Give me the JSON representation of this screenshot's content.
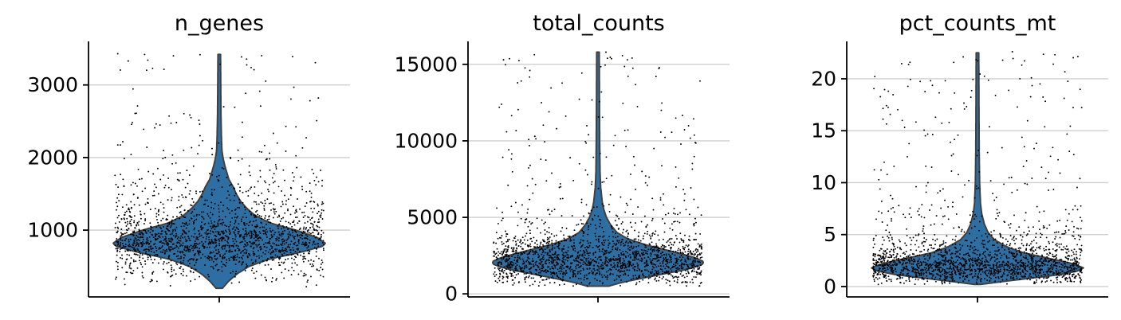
{
  "chart_data": [
    {
      "type": "violin",
      "title": "n_genes",
      "xlabel": "",
      "ylabel": "",
      "ylim": [
        80,
        3600
      ],
      "yticks": [
        1000,
        2000,
        3000
      ],
      "tick_labels": [
        "1000",
        "2000",
        "3000"
      ],
      "grid": true,
      "fill_color": "#2e6fa3",
      "distribution": {
        "min": 200,
        "max": 3420,
        "mode": 800,
        "quantiles": {
          "q25": 680,
          "median": 820,
          "q75": 1000
        },
        "density": [
          [
            200,
            0.03
          ],
          [
            300,
            0.09
          ],
          [
            400,
            0.17
          ],
          [
            500,
            0.28
          ],
          [
            600,
            0.47
          ],
          [
            700,
            0.78
          ],
          [
            780,
            0.98
          ],
          [
            820,
            1.0
          ],
          [
            900,
            0.92
          ],
          [
            1000,
            0.72
          ],
          [
            1100,
            0.48
          ],
          [
            1200,
            0.34
          ],
          [
            1300,
            0.26
          ],
          [
            1400,
            0.2
          ],
          [
            1500,
            0.16
          ],
          [
            1600,
            0.13
          ],
          [
            1700,
            0.09
          ],
          [
            1800,
            0.07
          ],
          [
            1900,
            0.05
          ],
          [
            2000,
            0.035
          ],
          [
            2100,
            0.025
          ],
          [
            2300,
            0.02
          ],
          [
            2600,
            0.016
          ],
          [
            3000,
            0.014
          ],
          [
            3420,
            0.012
          ]
        ],
        "outliers": [
          3430,
          3330,
          2820,
          2710,
          2700,
          2460,
          2040,
          2000,
          2000,
          1980
        ]
      }
    },
    {
      "type": "violin",
      "title": "total_counts",
      "xlabel": "",
      "ylabel": "",
      "ylim": [
        -200,
        16500
      ],
      "yticks": [
        0,
        5000,
        10000,
        15000
      ],
      "tick_labels": [
        "0",
        "5000",
        "10000",
        "15000"
      ],
      "grid": true,
      "fill_color": "#2e6fa3",
      "distribution": {
        "min": 500,
        "max": 15800,
        "mode": 2100,
        "quantiles": {
          "q25": 1650,
          "median": 2150,
          "q75": 2800
        },
        "density": [
          [
            500,
            0.1
          ],
          [
            700,
            0.2
          ],
          [
            1000,
            0.4
          ],
          [
            1300,
            0.62
          ],
          [
            1600,
            0.84
          ],
          [
            1900,
            0.98
          ],
          [
            2100,
            1.0
          ],
          [
            2400,
            0.9
          ],
          [
            2800,
            0.68
          ],
          [
            3200,
            0.45
          ],
          [
            3600,
            0.28
          ],
          [
            4000,
            0.18
          ],
          [
            4500,
            0.12
          ],
          [
            5000,
            0.08
          ],
          [
            5500,
            0.055
          ],
          [
            6000,
            0.04
          ],
          [
            7000,
            0.025
          ],
          [
            8000,
            0.019
          ],
          [
            10000,
            0.016
          ],
          [
            12500,
            0.014
          ],
          [
            15800,
            0.012
          ]
        ],
        "outliers": [
          15800,
          15300,
          10800,
          10400,
          10300,
          8900,
          8400,
          8000,
          7100,
          7000
        ]
      }
    },
    {
      "type": "violin",
      "title": "pct_counts_mt",
      "xlabel": "",
      "ylabel": "",
      "ylim": [
        -1,
        23.6
      ],
      "yticks": [
        0,
        5,
        10,
        15,
        20
      ],
      "tick_labels": [
        "0",
        "5",
        "10",
        "15",
        "20"
      ],
      "grid": true,
      "fill_color": "#2e6fa3",
      "distribution": {
        "min": 0.2,
        "max": 22.5,
        "mode": 1.8,
        "quantiles": {
          "q25": 1.3,
          "median": 1.9,
          "q75": 2.6
        },
        "density": [
          [
            0.2,
            0.03
          ],
          [
            0.5,
            0.25
          ],
          [
            0.8,
            0.5
          ],
          [
            1.1,
            0.75
          ],
          [
            1.5,
            0.95
          ],
          [
            1.8,
            1.0
          ],
          [
            2.2,
            0.9
          ],
          [
            2.7,
            0.68
          ],
          [
            3.2,
            0.45
          ],
          [
            3.8,
            0.28
          ],
          [
            4.5,
            0.16
          ],
          [
            5.2,
            0.1
          ],
          [
            6.0,
            0.065
          ],
          [
            7.0,
            0.04
          ],
          [
            8.0,
            0.028
          ],
          [
            10.0,
            0.02
          ],
          [
            13.0,
            0.016
          ],
          [
            17.0,
            0.014
          ],
          [
            22.5,
            0.012
          ]
        ],
        "outliers": [
          22.6,
          20.1,
          10.5,
          10.4,
          10.2,
          9.2,
          7.8,
          7.4,
          7.1,
          6.9
        ]
      }
    }
  ]
}
